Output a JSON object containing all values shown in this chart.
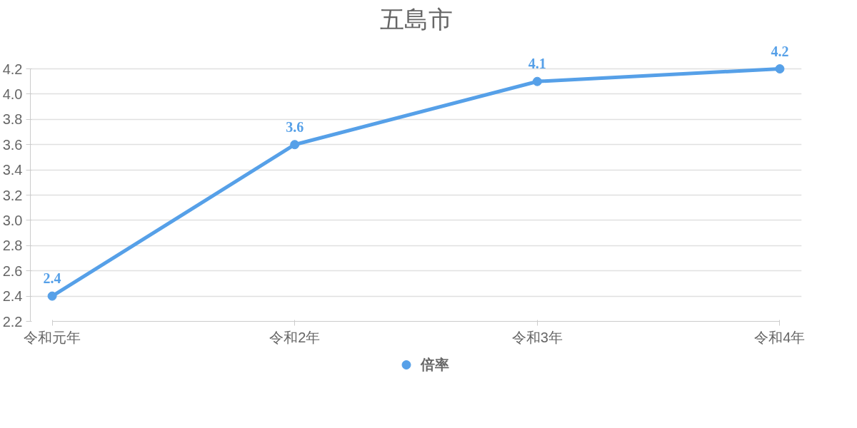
{
  "chart_data": {
    "type": "line",
    "title": "五島市",
    "categories": [
      "令和元年",
      "令和2年",
      "令和3年",
      "令和4年"
    ],
    "series": [
      {
        "name": "倍率",
        "color": "#56a0e8",
        "values": [
          2.4,
          3.6,
          4.1,
          4.2
        ]
      }
    ],
    "ylim": [
      2.2,
      4.2
    ],
    "yticks": [
      2.2,
      2.4,
      2.6,
      2.8,
      {
        "value": 3,
        "label": "3.0"
      },
      3.2,
      3.4,
      3.6,
      3.8,
      {
        "value": 4,
        "label": "4.0"
      },
      4.2
    ],
    "grid": "y",
    "legend": "bottom",
    "marker": "circle",
    "line_style": "solid",
    "data_labels": true
  }
}
